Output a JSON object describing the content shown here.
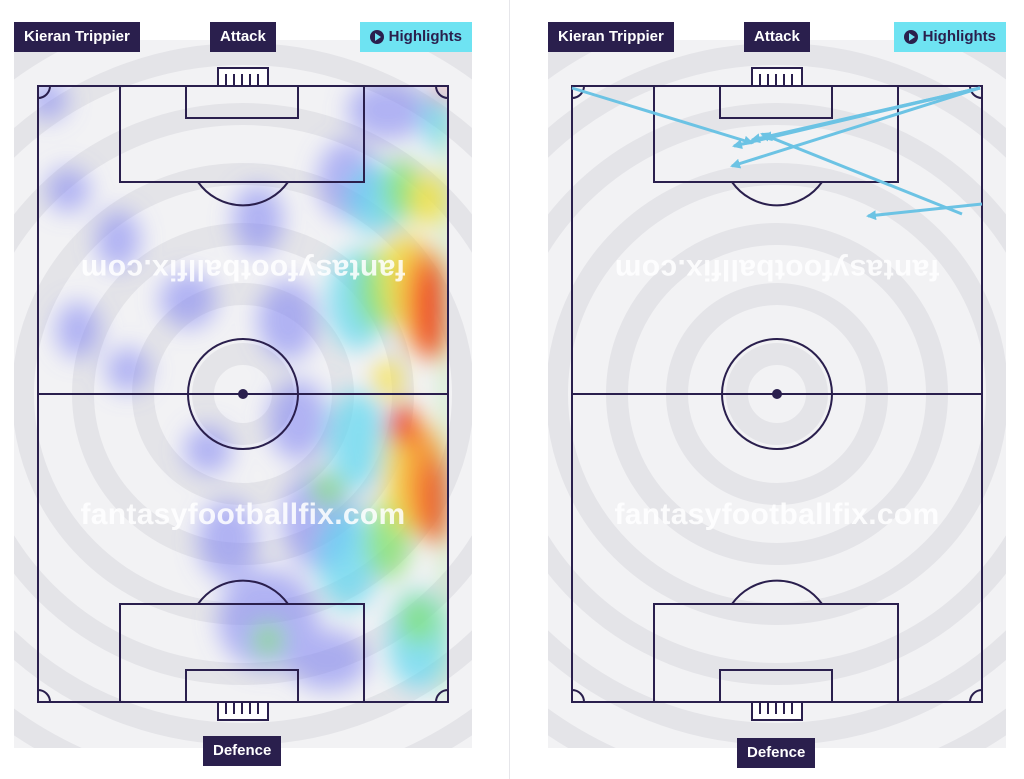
{
  "panels": [
    {
      "player": "Kieran Trippier",
      "attack_label": "Attack",
      "defence_label": "Defence",
      "highlights_label": "Highlights",
      "watermark": "fantasyfootballfix.com",
      "view": "heatmap"
    },
    {
      "player": "Kieran Trippier",
      "attack_label": "Attack",
      "defence_label": "Defence",
      "highlights_label": "Highlights",
      "watermark": "fantasyfootballfix.com",
      "view": "passes"
    }
  ],
  "colors": {
    "tag_bg": "#2a1f4d",
    "highlight_bg": "#6ee3f2",
    "pitch_line": "#2a1f4d",
    "pass_arrow": "#6cc3e4"
  },
  "icons": {
    "highlights": "play-circle-icon"
  }
}
